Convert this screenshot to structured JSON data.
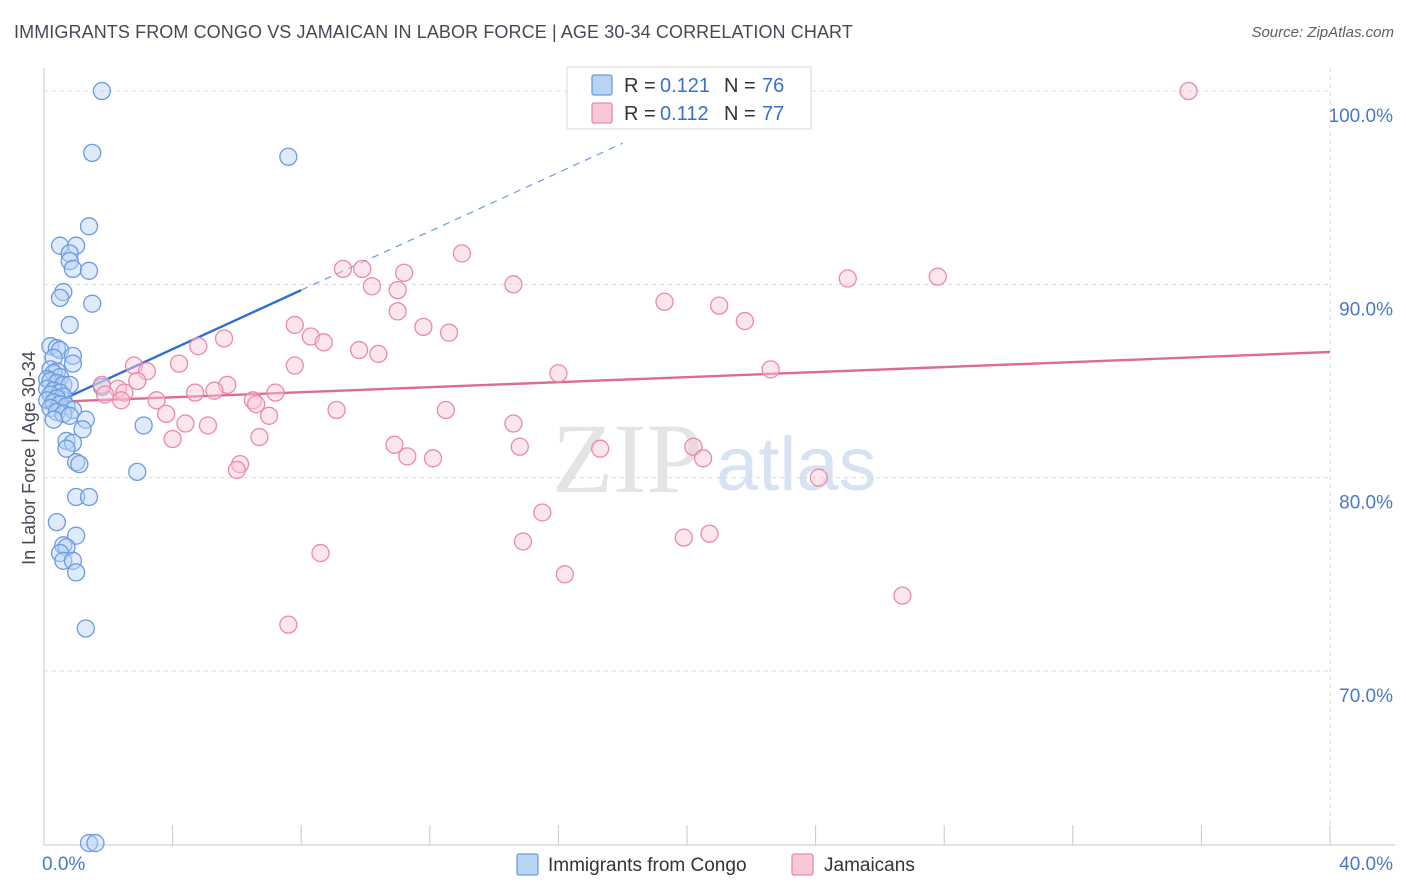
{
  "title": "IMMIGRANTS FROM CONGO VS JAMAICAN IN LABOR FORCE | AGE 30-34 CORRELATION CHART",
  "source": "Source: ZipAtlas.com",
  "watermark": {
    "part1": "ZIP",
    "part2": "atlas"
  },
  "colors": {
    "blue_fill": "#b8d3f4",
    "blue_stroke": "#6b9be0",
    "blue_line": "#2f6fd0",
    "pink_fill": "#f9c8d8",
    "pink_stroke": "#e98aab",
    "pink_line": "#e06a96",
    "tick": "#4a78c8",
    "grid": "#dddddd"
  },
  "chart_data": {
    "type": "scatter",
    "title": "IMMIGRANTS FROM CONGO VS JAMAICAN IN LABOR FORCE | AGE 30-34 CORRELATION CHART",
    "xlabel": "",
    "ylabel": "In Labor Force | Age 30-34",
    "xlim": [
      0,
      40
    ],
    "ylim": [
      61,
      101.5
    ],
    "x_ticks": [
      0,
      4,
      8,
      12,
      16,
      20,
      24,
      28,
      32,
      36,
      40
    ],
    "x_tick_labels": [
      {
        "value": 0,
        "label": "0.0%"
      },
      {
        "value": 40,
        "label": "40.0%"
      }
    ],
    "y_ticks": [
      {
        "value": 100,
        "label": "100.0%"
      },
      {
        "value": 90,
        "label": "90.0%"
      },
      {
        "value": 80,
        "label": "80.0%"
      },
      {
        "value": 70,
        "label": "70.0%"
      }
    ],
    "grid": true,
    "legend_position": "bottom-center",
    "stats": [
      {
        "r_label": "R =",
        "r_value": "0.121",
        "n_label": "N =",
        "n_value": "76"
      },
      {
        "r_label": "R =",
        "r_value": "0.112",
        "n_label": "N =",
        "n_value": "77"
      }
    ],
    "series": [
      {
        "name": "Immigrants from Congo",
        "color": "blue",
        "trend": {
          "x": [
            0,
            8
          ],
          "y": [
            83.6,
            89.7
          ],
          "dashed_to": [
            18,
            97.3
          ]
        },
        "points": [
          [
            1.8,
            100.0
          ],
          [
            1.5,
            96.8
          ],
          [
            7.6,
            96.6
          ],
          [
            1.4,
            93.0
          ],
          [
            0.5,
            92.0
          ],
          [
            1.0,
            92.0
          ],
          [
            0.8,
            91.6
          ],
          [
            0.8,
            91.2
          ],
          [
            0.9,
            90.8
          ],
          [
            1.4,
            90.7
          ],
          [
            0.6,
            89.6
          ],
          [
            0.5,
            89.3
          ],
          [
            1.5,
            89.0
          ],
          [
            0.8,
            87.9
          ],
          [
            0.2,
            86.8
          ],
          [
            0.4,
            86.7
          ],
          [
            0.5,
            86.6
          ],
          [
            0.9,
            86.3
          ],
          [
            0.3,
            86.2
          ],
          [
            0.9,
            85.9
          ],
          [
            0.2,
            85.6
          ],
          [
            0.4,
            85.5
          ],
          [
            0.3,
            85.4
          ],
          [
            0.5,
            85.2
          ],
          [
            0.1,
            85.1
          ],
          [
            0.2,
            85.0
          ],
          [
            0.4,
            84.9
          ],
          [
            0.6,
            84.8
          ],
          [
            0.8,
            84.8
          ],
          [
            1.8,
            84.7
          ],
          [
            0.1,
            84.6
          ],
          [
            0.3,
            84.5
          ],
          [
            0.5,
            84.4
          ],
          [
            0.2,
            84.3
          ],
          [
            0.6,
            84.2
          ],
          [
            0.4,
            84.1
          ],
          [
            0.1,
            84.0
          ],
          [
            0.3,
            83.9
          ],
          [
            0.5,
            83.8
          ],
          [
            0.7,
            83.7
          ],
          [
            0.2,
            83.6
          ],
          [
            0.9,
            83.5
          ],
          [
            0.4,
            83.4
          ],
          [
            0.6,
            83.3
          ],
          [
            0.8,
            83.2
          ],
          [
            0.3,
            83.0
          ],
          [
            1.3,
            83.0
          ],
          [
            3.1,
            82.7
          ],
          [
            1.2,
            82.5
          ],
          [
            0.7,
            81.9
          ],
          [
            0.9,
            81.8
          ],
          [
            0.7,
            81.5
          ],
          [
            1.0,
            80.8
          ],
          [
            1.1,
            80.7
          ],
          [
            2.9,
            80.3
          ],
          [
            1.0,
            79.0
          ],
          [
            1.4,
            79.0
          ],
          [
            0.4,
            77.7
          ],
          [
            1.0,
            77.0
          ],
          [
            0.6,
            76.5
          ],
          [
            0.7,
            76.4
          ],
          [
            0.5,
            76.1
          ],
          [
            0.6,
            75.7
          ],
          [
            0.9,
            75.7
          ],
          [
            1.0,
            75.1
          ],
          [
            1.3,
            72.2
          ],
          [
            1.4,
            61.1
          ],
          [
            1.6,
            61.1
          ]
        ]
      },
      {
        "name": "Jamaicans",
        "color": "pink",
        "trend": {
          "x": [
            0,
            40
          ],
          "y": [
            83.9,
            86.5
          ]
        },
        "points": [
          [
            35.6,
            100.0
          ],
          [
            13.0,
            91.6
          ],
          [
            9.3,
            90.8
          ],
          [
            9.9,
            90.8
          ],
          [
            11.2,
            90.6
          ],
          [
            25.0,
            90.3
          ],
          [
            27.8,
            90.4
          ],
          [
            14.6,
            90.0
          ],
          [
            10.2,
            89.9
          ],
          [
            11.0,
            89.7
          ],
          [
            19.3,
            89.1
          ],
          [
            21.0,
            88.9
          ],
          [
            11.0,
            88.6
          ],
          [
            21.8,
            88.1
          ],
          [
            7.8,
            87.9
          ],
          [
            11.8,
            87.8
          ],
          [
            12.6,
            87.5
          ],
          [
            8.3,
            87.3
          ],
          [
            5.6,
            87.2
          ],
          [
            8.7,
            87.0
          ],
          [
            4.8,
            86.8
          ],
          [
            9.8,
            86.6
          ],
          [
            10.4,
            86.4
          ],
          [
            4.2,
            85.9
          ],
          [
            7.8,
            85.8
          ],
          [
            2.8,
            85.8
          ],
          [
            3.2,
            85.5
          ],
          [
            16.0,
            85.4
          ],
          [
            22.6,
            85.6
          ],
          [
            2.9,
            85.0
          ],
          [
            5.7,
            84.8
          ],
          [
            1.8,
            84.8
          ],
          [
            2.3,
            84.6
          ],
          [
            2.5,
            84.4
          ],
          [
            4.7,
            84.4
          ],
          [
            5.3,
            84.5
          ],
          [
            7.2,
            84.4
          ],
          [
            1.9,
            84.3
          ],
          [
            2.4,
            84.0
          ],
          [
            3.5,
            84.0
          ],
          [
            6.5,
            84.0
          ],
          [
            6.6,
            83.8
          ],
          [
            9.1,
            83.5
          ],
          [
            12.5,
            83.5
          ],
          [
            7.0,
            83.2
          ],
          [
            3.8,
            83.3
          ],
          [
            14.6,
            82.8
          ],
          [
            4.4,
            82.8
          ],
          [
            5.1,
            82.7
          ],
          [
            6.7,
            82.1
          ],
          [
            4.0,
            82.0
          ],
          [
            10.9,
            81.7
          ],
          [
            14.8,
            81.6
          ],
          [
            20.2,
            81.6
          ],
          [
            17.3,
            81.5
          ],
          [
            11.3,
            81.1
          ],
          [
            12.1,
            81.0
          ],
          [
            20.5,
            81.0
          ],
          [
            6.1,
            80.7
          ],
          [
            6.0,
            80.4
          ],
          [
            24.1,
            80.0
          ],
          [
            15.5,
            78.2
          ],
          [
            20.7,
            77.1
          ],
          [
            19.9,
            76.9
          ],
          [
            14.9,
            76.7
          ],
          [
            8.6,
            76.1
          ],
          [
            16.2,
            75.0
          ],
          [
            26.7,
            73.9
          ],
          [
            7.6,
            72.4
          ]
        ]
      }
    ]
  },
  "legend": {
    "items": [
      {
        "label": "Immigrants from Congo",
        "color": "blue"
      },
      {
        "label": "Jamaicans",
        "color": "pink"
      }
    ]
  }
}
